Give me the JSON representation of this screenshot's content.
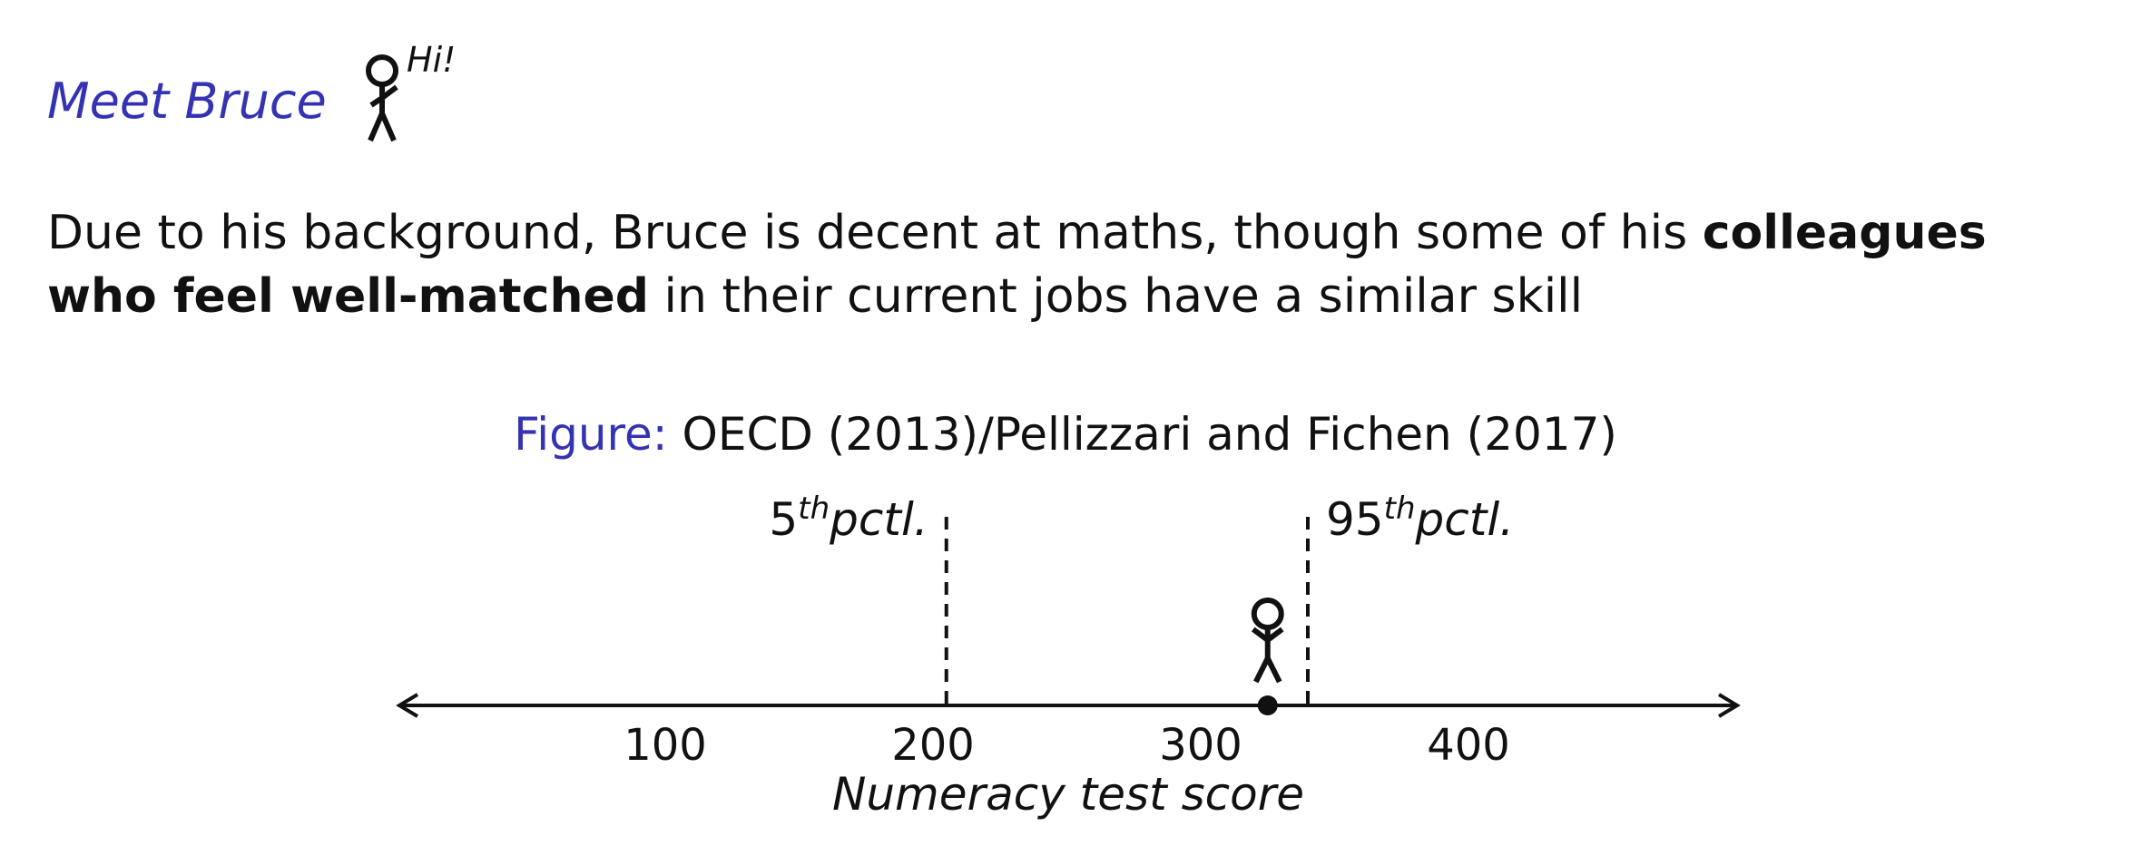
{
  "header": {
    "title": "Meet Bruce",
    "greeting": "Hi!"
  },
  "paragraph": {
    "part1": "Due to his background, Bruce is decent at maths, though some of his ",
    "bold1": "colleagues who feel well-matched",
    "part2": " in their current jobs have a similar skill"
  },
  "figure": {
    "caption_lead": "Figure:",
    "caption_text": " OECD (2013)/Pellizzari and Fichen (2017)"
  },
  "chart_data": {
    "type": "number-line",
    "xlabel": "Numeracy test score",
    "ticks": [
      100,
      200,
      300,
      400
    ],
    "tick_labels": [
      "100",
      "200",
      "300",
      "400"
    ],
    "markers": [
      {
        "label_num": "5",
        "label_sup": "th",
        "label_text": "pctl.",
        "value": 205
      },
      {
        "label_num": "95",
        "label_sup": "th",
        "label_text": "pctl.",
        "value": 340
      }
    ],
    "bruce_score": 325,
    "xlim": [
      0,
      500
    ]
  }
}
